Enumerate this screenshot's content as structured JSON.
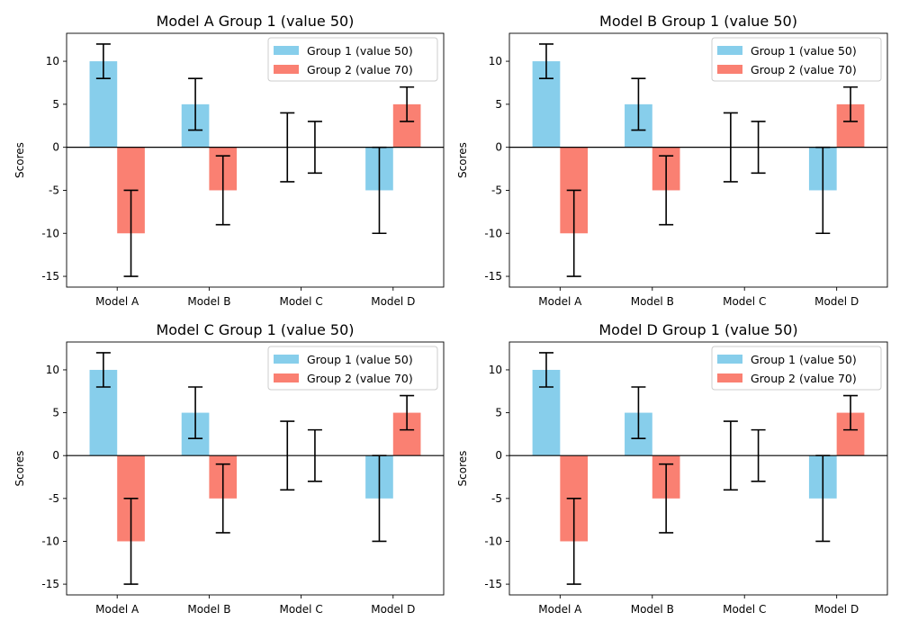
{
  "chart_data": [
    {
      "type": "bar",
      "title": "Model A Group 1 (value 50)",
      "xlabel": "",
      "ylabel": "Scores",
      "categories": [
        "Model A",
        "Model B",
        "Model C",
        "Model D"
      ],
      "ylim": [
        -16.25,
        13.25
      ],
      "yticks": [
        -15,
        -10,
        -5,
        0,
        5,
        10
      ],
      "legend_position": "upper right",
      "grid": false,
      "series": [
        {
          "name": "Group 1 (value 50)",
          "color": "#87ceeb",
          "values": [
            10,
            5,
            0,
            -5
          ],
          "errors": [
            2,
            3,
            4,
            5
          ]
        },
        {
          "name": "Group 2 (value 70)",
          "color": "#fa8072",
          "values": [
            -10,
            -5,
            0,
            5
          ],
          "errors": [
            5,
            4,
            3,
            2
          ]
        }
      ]
    },
    {
      "type": "bar",
      "title": "Model B Group 1 (value 50)",
      "xlabel": "",
      "ylabel": "Scores",
      "categories": [
        "Model A",
        "Model B",
        "Model C",
        "Model D"
      ],
      "ylim": [
        -16.25,
        13.25
      ],
      "yticks": [
        -15,
        -10,
        -5,
        0,
        5,
        10
      ],
      "legend_position": "upper right",
      "grid": false,
      "series": [
        {
          "name": "Group 1 (value 50)",
          "color": "#87ceeb",
          "values": [
            10,
            5,
            0,
            -5
          ],
          "errors": [
            2,
            3,
            4,
            5
          ]
        },
        {
          "name": "Group 2 (value 70)",
          "color": "#fa8072",
          "values": [
            -10,
            -5,
            0,
            5
          ],
          "errors": [
            5,
            4,
            3,
            2
          ]
        }
      ]
    },
    {
      "type": "bar",
      "title": "Model C Group 1 (value 50)",
      "xlabel": "",
      "ylabel": "Scores",
      "categories": [
        "Model A",
        "Model B",
        "Model C",
        "Model D"
      ],
      "ylim": [
        -16.25,
        13.25
      ],
      "yticks": [
        -15,
        -10,
        -5,
        0,
        5,
        10
      ],
      "legend_position": "upper right",
      "grid": false,
      "series": [
        {
          "name": "Group 1 (value 50)",
          "color": "#87ceeb",
          "values": [
            10,
            5,
            0,
            -5
          ],
          "errors": [
            2,
            3,
            4,
            5
          ]
        },
        {
          "name": "Group 2 (value 70)",
          "color": "#fa8072",
          "values": [
            -10,
            -5,
            0,
            5
          ],
          "errors": [
            5,
            4,
            3,
            2
          ]
        }
      ]
    },
    {
      "type": "bar",
      "title": "Model D Group 1 (value 50)",
      "xlabel": "",
      "ylabel": "Scores",
      "categories": [
        "Model A",
        "Model B",
        "Model C",
        "Model D"
      ],
      "ylim": [
        -16.25,
        13.25
      ],
      "yticks": [
        -15,
        -10,
        -5,
        0,
        5,
        10
      ],
      "legend_position": "upper right",
      "grid": false,
      "series": [
        {
          "name": "Group 1 (value 50)",
          "color": "#87ceeb",
          "values": [
            10,
            5,
            0,
            -5
          ],
          "errors": [
            2,
            3,
            4,
            5
          ]
        },
        {
          "name": "Group 2 (value 70)",
          "color": "#fa8072",
          "values": [
            -10,
            -5,
            0,
            5
          ],
          "errors": [
            5,
            4,
            3,
            2
          ]
        }
      ]
    }
  ]
}
